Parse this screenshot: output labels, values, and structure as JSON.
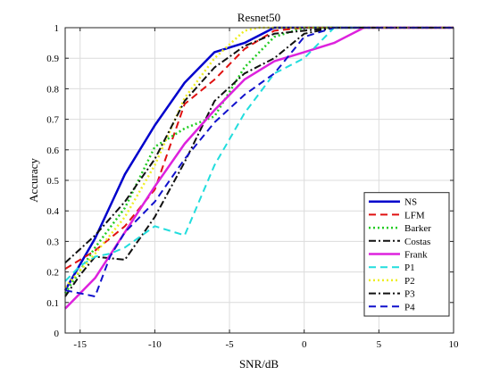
{
  "chart_data": {
    "type": "line",
    "title": "Resnet50",
    "xlabel": "SNR/dB",
    "ylabel": "Accuracy",
    "xlim": [
      -16,
      10
    ],
    "ylim": [
      0,
      1
    ],
    "xticks": [
      -15,
      -10,
      -5,
      0,
      5,
      10
    ],
    "yticks": [
      0,
      0.1,
      0.2,
      0.3,
      0.4,
      0.5,
      0.6,
      0.7,
      0.8,
      0.9,
      1
    ],
    "grid": true,
    "legend_position": "bottom-right",
    "series": [
      {
        "name": "NS",
        "color": "#0000cc",
        "dash": "solid",
        "width": 2.5,
        "x": [
          -16,
          -14,
          -12,
          -10,
          -8,
          -6,
          -4,
          -2,
          0,
          2,
          4,
          6,
          8,
          10
        ],
        "y": [
          0.14,
          0.31,
          0.52,
          0.68,
          0.82,
          0.92,
          0.95,
          1,
          1,
          1,
          1,
          1,
          1,
          1
        ]
      },
      {
        "name": "LFM",
        "color": "#e01010",
        "dash": "dashed",
        "width": 2,
        "x": [
          -16,
          -14,
          -12,
          -10,
          -8,
          -6,
          -4,
          -2,
          0,
          2,
          4,
          6,
          8,
          10
        ],
        "y": [
          0.21,
          0.27,
          0.35,
          0.47,
          0.75,
          0.83,
          0.93,
          0.99,
          1,
          1,
          1,
          1,
          1,
          1
        ]
      },
      {
        "name": "Barker",
        "color": "#22cc22",
        "dash": "dotted",
        "width": 2.5,
        "x": [
          -16,
          -14,
          -12,
          -10,
          -8,
          -6,
          -4,
          -2,
          0,
          2,
          4,
          6,
          8,
          10
        ],
        "y": [
          0.13,
          0.28,
          0.41,
          0.61,
          0.67,
          0.71,
          0.87,
          0.97,
          1,
          1,
          1,
          1,
          1,
          1
        ]
      },
      {
        "name": "Costas",
        "color": "#111111",
        "dash": "dashdot",
        "width": 2,
        "x": [
          -16,
          -15,
          -14,
          -13,
          -12,
          -10,
          -8,
          -6,
          -4,
          -2,
          0,
          2,
          4,
          6,
          8,
          10
        ],
        "y": [
          0.12,
          0.19,
          0.25,
          0.245,
          0.24,
          0.38,
          0.56,
          0.76,
          0.85,
          0.9,
          0.98,
          1,
          1,
          1,
          1,
          1
        ]
      },
      {
        "name": "Frank",
        "color": "#dd22dd",
        "dash": "solid",
        "width": 2.5,
        "x": [
          -16,
          -14,
          -12,
          -10,
          -8,
          -6,
          -4,
          -2,
          0,
          2,
          4,
          6,
          8,
          10
        ],
        "y": [
          0.08,
          0.18,
          0.33,
          0.48,
          0.62,
          0.73,
          0.83,
          0.89,
          0.92,
          0.95,
          1,
          1,
          1,
          1
        ]
      },
      {
        "name": "P1",
        "color": "#22dddd",
        "dash": "dashed",
        "width": 2,
        "x": [
          -16,
          -15,
          -14,
          -13,
          -12,
          -10,
          -8,
          -6,
          -4,
          -2,
          0,
          2,
          4,
          6,
          8,
          10
        ],
        "y": [
          0.17,
          0.22,
          0.25,
          0.26,
          0.28,
          0.35,
          0.32,
          0.55,
          0.72,
          0.85,
          0.9,
          1,
          1,
          1,
          1,
          1
        ]
      },
      {
        "name": "P2",
        "color": "#eeee22",
        "dash": "dotted",
        "width": 2.5,
        "x": [
          -16,
          -14,
          -12,
          -10,
          -8,
          -6,
          -4,
          -3,
          -2,
          0,
          2,
          4,
          6,
          8,
          10
        ],
        "y": [
          0.15,
          0.26,
          0.38,
          0.55,
          0.77,
          0.9,
          0.99,
          1,
          1,
          1,
          1,
          1,
          1,
          1,
          1
        ]
      },
      {
        "name": "P3",
        "color": "#111111",
        "dash": "dashdot",
        "width": 2,
        "x": [
          -16,
          -14,
          -12,
          -10,
          -8,
          -6,
          -4,
          -2,
          0,
          2,
          4,
          6,
          8,
          10
        ],
        "y": [
          0.23,
          0.32,
          0.43,
          0.57,
          0.76,
          0.87,
          0.94,
          0.98,
          0.99,
          1,
          1,
          1,
          1,
          1
        ]
      },
      {
        "name": "P4",
        "color": "#1111cc",
        "dash": "dashed",
        "width": 2,
        "x": [
          -16,
          -15,
          -14,
          -13,
          -12,
          -10,
          -8,
          -6,
          -4,
          -2,
          0,
          2,
          4,
          6,
          8,
          10
        ],
        "y": [
          0.14,
          0.13,
          0.12,
          0.25,
          0.33,
          0.43,
          0.57,
          0.69,
          0.78,
          0.85,
          0.97,
          1,
          1,
          1,
          1,
          1
        ]
      }
    ]
  }
}
